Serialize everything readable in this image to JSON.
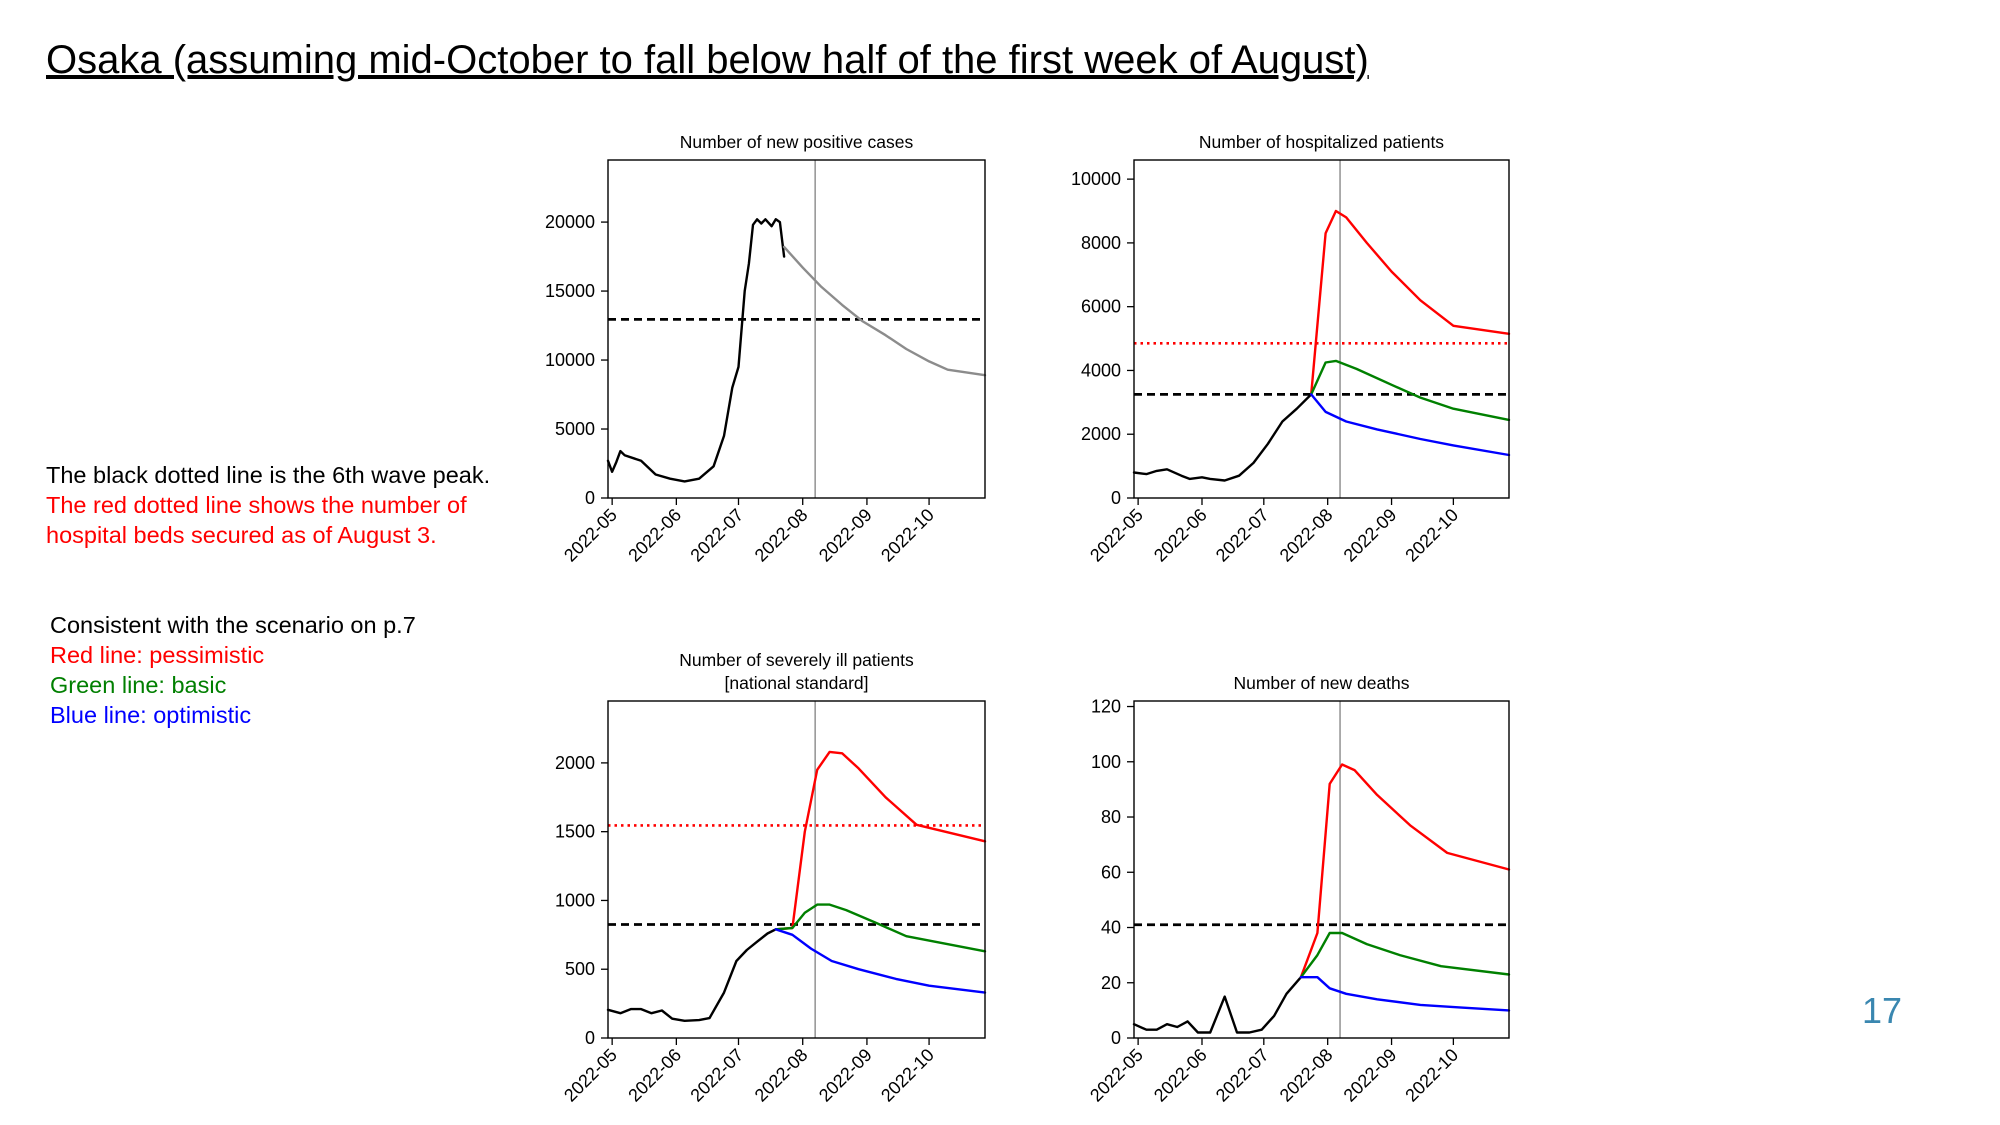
{
  "slide": {
    "title": "Osaka (assuming mid-October to fall below half of the first week of August)",
    "note_black": "The black dotted line is the 6th wave peak.",
    "note_red_1": "The red dotted line shows the number of",
    "note_red_2": "hospital beds secured as of August 3.",
    "legend_intro": "Consistent with the scenario on p.7",
    "legend_red": "Red line: pessimistic",
    "legend_green": "Green line: basic",
    "legend_blue": "Blue line: optimistic",
    "page_number": "17"
  },
  "colors": {
    "pessimistic": "#ff0000",
    "basic": "#008000",
    "optimistic": "#0000ff",
    "actual": "#000000",
    "projection": "#8c8c8c",
    "page_number": "#3a87b0"
  },
  "chart_data": [
    {
      "type": "line",
      "title": [
        "Number of new positive cases"
      ],
      "x_ticks": [
        "2022-05",
        "2022-06",
        "2022-07",
        "2022-08",
        "2022-09",
        "2022-10"
      ],
      "xlim": [
        "2022-04-29",
        "2022-10-28"
      ],
      "ylim": [
        0,
        24500
      ],
      "y_ticks": [
        0,
        5000,
        10000,
        15000,
        20000
      ],
      "vline": "2022-08-07",
      "hlines": [
        {
          "value": 12950,
          "color": "#000000",
          "style": "dashed"
        }
      ],
      "series": [
        {
          "color": "#000000",
          "points": [
            [
              "2022-04-29",
              2700
            ],
            [
              "2022-05-01",
              1900
            ],
            [
              "2022-05-03",
              2600
            ],
            [
              "2022-05-05",
              3400
            ],
            [
              "2022-05-07",
              3100
            ],
            [
              "2022-05-15",
              2700
            ],
            [
              "2022-05-22",
              1700
            ],
            [
              "2022-05-29",
              1400
            ],
            [
              "2022-06-05",
              1200
            ],
            [
              "2022-06-12",
              1400
            ],
            [
              "2022-06-19",
              2300
            ],
            [
              "2022-06-24",
              4500
            ],
            [
              "2022-06-28",
              8000
            ],
            [
              "2022-07-01",
              9500
            ],
            [
              "2022-07-04",
              15000
            ],
            [
              "2022-07-06",
              17000
            ],
            [
              "2022-07-08",
              19800
            ],
            [
              "2022-07-10",
              20200
            ],
            [
              "2022-07-12",
              19900
            ],
            [
              "2022-07-14",
              20200
            ],
            [
              "2022-07-17",
              19700
            ],
            [
              "2022-07-19",
              20200
            ],
            [
              "2022-07-21",
              20000
            ],
            [
              "2022-07-23",
              17500
            ]
          ]
        },
        {
          "color": "#8c8c8c",
          "points": [
            [
              "2022-07-23",
              18200
            ],
            [
              "2022-08-01",
              16700
            ],
            [
              "2022-08-10",
              15300
            ],
            [
              "2022-08-20",
              14000
            ],
            [
              "2022-08-30",
              12800
            ],
            [
              "2022-09-10",
              11800
            ],
            [
              "2022-09-20",
              10800
            ],
            [
              "2022-10-01",
              9900
            ],
            [
              "2022-10-10",
              9300
            ],
            [
              "2022-10-28",
              8900
            ]
          ]
        }
      ]
    },
    {
      "type": "line",
      "title": [
        "Number of hospitalized patients"
      ],
      "x_ticks": [
        "2022-05",
        "2022-06",
        "2022-07",
        "2022-08",
        "2022-09",
        "2022-10"
      ],
      "xlim": [
        "2022-04-29",
        "2022-10-28"
      ],
      "ylim": [
        0,
        10600
      ],
      "y_ticks": [
        0,
        2000,
        4000,
        6000,
        8000,
        10000
      ],
      "vline": "2022-08-07",
      "hlines": [
        {
          "value": 4850,
          "color": "#ff0000",
          "style": "dotted"
        },
        {
          "value": 3250,
          "color": "#000000",
          "style": "dashed"
        }
      ],
      "series": [
        {
          "color": "#000000",
          "points": [
            [
              "2022-04-29",
              800
            ],
            [
              "2022-05-05",
              750
            ],
            [
              "2022-05-10",
              850
            ],
            [
              "2022-05-15",
              900
            ],
            [
              "2022-05-22",
              700
            ],
            [
              "2022-05-26",
              600
            ],
            [
              "2022-06-01",
              650
            ],
            [
              "2022-06-05",
              600
            ],
            [
              "2022-06-12",
              550
            ],
            [
              "2022-06-19",
              700
            ],
            [
              "2022-06-26",
              1100
            ],
            [
              "2022-07-03",
              1700
            ],
            [
              "2022-07-10",
              2400
            ],
            [
              "2022-07-17",
              2800
            ],
            [
              "2022-07-24",
              3250
            ]
          ]
        },
        {
          "color": "#ff0000",
          "points": [
            [
              "2022-07-24",
              3250
            ],
            [
              "2022-07-31",
              8300
            ],
            [
              "2022-08-05",
              9000
            ],
            [
              "2022-08-10",
              8800
            ],
            [
              "2022-08-20",
              8000
            ],
            [
              "2022-09-01",
              7100
            ],
            [
              "2022-09-15",
              6200
            ],
            [
              "2022-10-01",
              5400
            ],
            [
              "2022-10-28",
              5150
            ]
          ]
        },
        {
          "color": "#008000",
          "points": [
            [
              "2022-07-24",
              3250
            ],
            [
              "2022-07-31",
              4250
            ],
            [
              "2022-08-05",
              4300
            ],
            [
              "2022-08-15",
              4050
            ],
            [
              "2022-09-01",
              3550
            ],
            [
              "2022-09-15",
              3150
            ],
            [
              "2022-10-01",
              2800
            ],
            [
              "2022-10-28",
              2450
            ]
          ]
        },
        {
          "color": "#0000ff",
          "points": [
            [
              "2022-07-24",
              3250
            ],
            [
              "2022-07-31",
              2700
            ],
            [
              "2022-08-10",
              2400
            ],
            [
              "2022-08-25",
              2150
            ],
            [
              "2022-09-15",
              1850
            ],
            [
              "2022-10-01",
              1650
            ],
            [
              "2022-10-28",
              1350
            ]
          ]
        }
      ]
    },
    {
      "type": "line",
      "title": [
        "Number of severely ill patients",
        "[national standard]"
      ],
      "x_ticks": [
        "2022-05",
        "2022-06",
        "2022-07",
        "2022-08",
        "2022-09",
        "2022-10"
      ],
      "xlim": [
        "2022-04-29",
        "2022-10-28"
      ],
      "ylim": [
        0,
        2450
      ],
      "y_ticks": [
        0,
        500,
        1000,
        1500,
        2000
      ],
      "vline": "2022-08-07",
      "hlines": [
        {
          "value": 1545,
          "color": "#ff0000",
          "style": "dotted"
        },
        {
          "value": 825,
          "color": "#000000",
          "style": "dashed"
        }
      ],
      "series": [
        {
          "color": "#000000",
          "points": [
            [
              "2022-04-29",
              205
            ],
            [
              "2022-05-05",
              180
            ],
            [
              "2022-05-10",
              210
            ],
            [
              "2022-05-15",
              210
            ],
            [
              "2022-05-20",
              180
            ],
            [
              "2022-05-25",
              200
            ],
            [
              "2022-05-30",
              140
            ],
            [
              "2022-06-05",
              125
            ],
            [
              "2022-06-12",
              130
            ],
            [
              "2022-06-17",
              145
            ],
            [
              "2022-06-24",
              330
            ],
            [
              "2022-06-30",
              560
            ],
            [
              "2022-07-05",
              640
            ],
            [
              "2022-07-10",
              700
            ],
            [
              "2022-07-15",
              760
            ],
            [
              "2022-07-19",
              790
            ]
          ]
        },
        {
          "color": "#ff0000",
          "points": [
            [
              "2022-07-19",
              790
            ],
            [
              "2022-07-27",
              800
            ],
            [
              "2022-08-02",
              1500
            ],
            [
              "2022-08-08",
              1950
            ],
            [
              "2022-08-14",
              2080
            ],
            [
              "2022-08-20",
              2070
            ],
            [
              "2022-08-28",
              1960
            ],
            [
              "2022-09-10",
              1750
            ],
            [
              "2022-09-25",
              1550
            ],
            [
              "2022-10-28",
              1430
            ]
          ]
        },
        {
          "color": "#008000",
          "points": [
            [
              "2022-07-19",
              790
            ],
            [
              "2022-07-27",
              800
            ],
            [
              "2022-08-02",
              910
            ],
            [
              "2022-08-08",
              970
            ],
            [
              "2022-08-14",
              970
            ],
            [
              "2022-08-22",
              930
            ],
            [
              "2022-09-05",
              840
            ],
            [
              "2022-09-20",
              740
            ],
            [
              "2022-10-28",
              630
            ]
          ]
        },
        {
          "color": "#0000ff",
          "points": [
            [
              "2022-07-19",
              790
            ],
            [
              "2022-07-27",
              750
            ],
            [
              "2022-08-05",
              650
            ],
            [
              "2022-08-15",
              560
            ],
            [
              "2022-08-28",
              500
            ],
            [
              "2022-09-15",
              430
            ],
            [
              "2022-10-01",
              380
            ],
            [
              "2022-10-28",
              330
            ]
          ]
        }
      ]
    },
    {
      "type": "line",
      "title": [
        "Number of new deaths"
      ],
      "x_ticks": [
        "2022-05",
        "2022-06",
        "2022-07",
        "2022-08",
        "2022-09",
        "2022-10"
      ],
      "xlim": [
        "2022-04-29",
        "2022-10-28"
      ],
      "ylim": [
        0,
        122
      ],
      "y_ticks": [
        0,
        20,
        40,
        60,
        80,
        100,
        120
      ],
      "vline": "2022-08-07",
      "hlines": [
        {
          "value": 41,
          "color": "#000000",
          "style": "dashed"
        }
      ],
      "series": [
        {
          "color": "#000000",
          "points": [
            [
              "2022-04-29",
              5
            ],
            [
              "2022-05-05",
              3
            ],
            [
              "2022-05-10",
              3
            ],
            [
              "2022-05-15",
              5
            ],
            [
              "2022-05-20",
              4
            ],
            [
              "2022-05-25",
              6
            ],
            [
              "2022-05-30",
              2
            ],
            [
              "2022-06-05",
              2
            ],
            [
              "2022-06-12",
              15
            ],
            [
              "2022-06-18",
              2
            ],
            [
              "2022-06-24",
              2
            ],
            [
              "2022-06-30",
              3
            ],
            [
              "2022-07-06",
              8
            ],
            [
              "2022-07-12",
              16
            ],
            [
              "2022-07-19",
              22
            ]
          ]
        },
        {
          "color": "#ff0000",
          "points": [
            [
              "2022-07-19",
              22
            ],
            [
              "2022-07-27",
              38
            ],
            [
              "2022-08-02",
              92
            ],
            [
              "2022-08-08",
              99
            ],
            [
              "2022-08-14",
              97
            ],
            [
              "2022-08-25",
              88
            ],
            [
              "2022-09-10",
              77
            ],
            [
              "2022-09-28",
              67
            ],
            [
              "2022-10-28",
              61
            ]
          ]
        },
        {
          "color": "#008000",
          "points": [
            [
              "2022-07-19",
              22
            ],
            [
              "2022-07-27",
              30
            ],
            [
              "2022-08-02",
              38
            ],
            [
              "2022-08-08",
              38
            ],
            [
              "2022-08-20",
              34
            ],
            [
              "2022-09-05",
              30
            ],
            [
              "2022-09-25",
              26
            ],
            [
              "2022-10-28",
              23
            ]
          ]
        },
        {
          "color": "#0000ff",
          "points": [
            [
              "2022-07-19",
              22
            ],
            [
              "2022-07-27",
              22
            ],
            [
              "2022-08-02",
              18
            ],
            [
              "2022-08-10",
              16
            ],
            [
              "2022-08-25",
              14
            ],
            [
              "2022-09-15",
              12
            ],
            [
              "2022-10-05",
              11
            ],
            [
              "2022-10-28",
              10
            ]
          ]
        }
      ]
    }
  ]
}
